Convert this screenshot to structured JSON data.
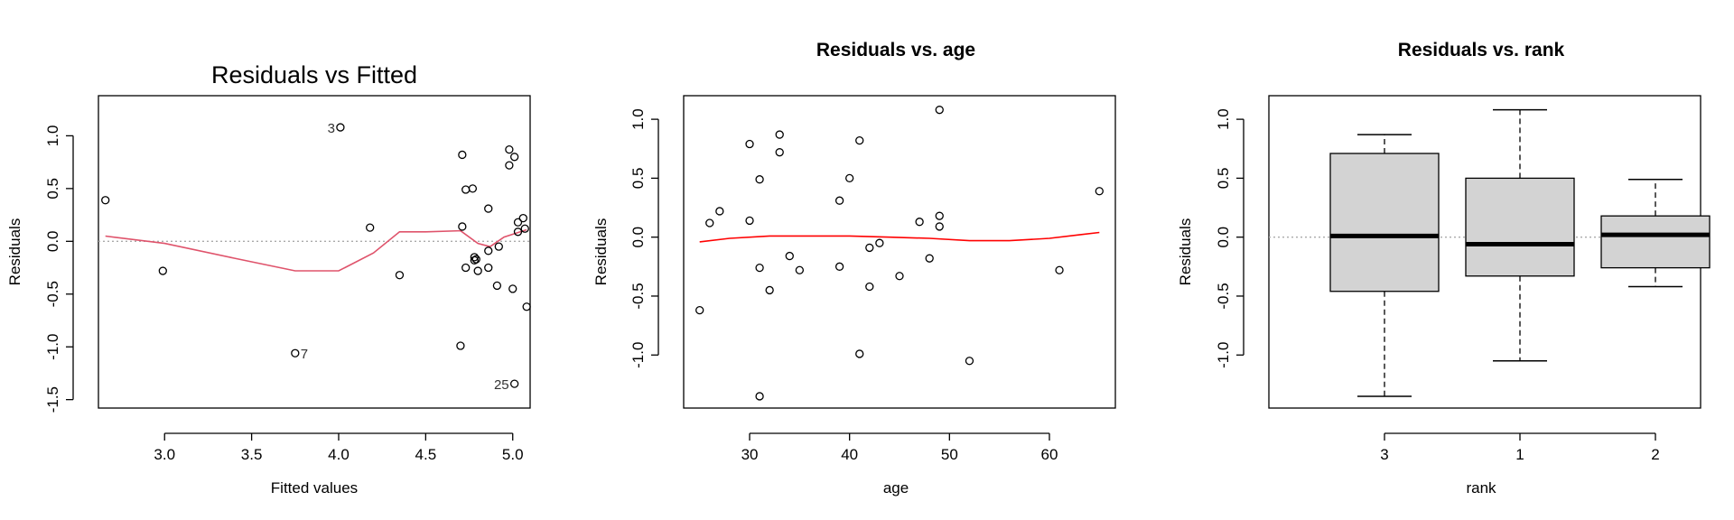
{
  "chart_data": [
    {
      "type": "scatter",
      "title": "Residuals vs Fitted",
      "xlabel": "Fitted values",
      "ylabel": "Residuals",
      "xlim": [
        2.62,
        5.1
      ],
      "ylim": [
        -1.58,
        1.38
      ],
      "xticks": [
        3.0,
        3.5,
        4.0,
        4.5,
        5.0
      ],
      "xtick_labels": [
        "3.0",
        "3.5",
        "4.0",
        "4.5",
        "5.0"
      ],
      "yticks": [
        -1.5,
        -1.0,
        -0.5,
        0.0,
        0.5,
        1.0
      ],
      "ytick_labels": [
        "-1.5",
        "-1.0",
        "-0.5",
        "0.0",
        "0.5",
        "1.0"
      ],
      "points": [
        {
          "x": 2.66,
          "y": 0.39
        },
        {
          "x": 2.99,
          "y": -0.28
        },
        {
          "x": 3.75,
          "y": -1.06
        },
        {
          "x": 4.01,
          "y": 1.08
        },
        {
          "x": 4.18,
          "y": 0.13
        },
        {
          "x": 4.35,
          "y": -0.32
        },
        {
          "x": 4.71,
          "y": 0.82
        },
        {
          "x": 4.71,
          "y": 0.14
        },
        {
          "x": 4.7,
          "y": -0.99
        },
        {
          "x": 4.73,
          "y": 0.49
        },
        {
          "x": 4.73,
          "y": -0.25
        },
        {
          "x": 4.77,
          "y": 0.5
        },
        {
          "x": 4.78,
          "y": -0.15
        },
        {
          "x": 4.78,
          "y": -0.18
        },
        {
          "x": 4.79,
          "y": -0.17
        },
        {
          "x": 4.8,
          "y": -0.28
        },
        {
          "x": 4.86,
          "y": 0.31
        },
        {
          "x": 4.86,
          "y": -0.09
        },
        {
          "x": 4.86,
          "y": -0.25
        },
        {
          "x": 4.91,
          "y": -0.42
        },
        {
          "x": 4.92,
          "y": -0.05
        },
        {
          "x": 4.98,
          "y": 0.87
        },
        {
          "x": 4.98,
          "y": 0.72
        },
        {
          "x": 5.0,
          "y": -0.45
        },
        {
          "x": 5.01,
          "y": 0.8
        },
        {
          "x": 5.01,
          "y": -1.35
        },
        {
          "x": 5.03,
          "y": 0.18
        },
        {
          "x": 5.03,
          "y": 0.09
        },
        {
          "x": 5.06,
          "y": 0.22
        },
        {
          "x": 5.07,
          "y": 0.12
        },
        {
          "x": 5.08,
          "y": -0.62
        }
      ],
      "point_labels": [
        {
          "text": "3",
          "x": 4.01,
          "y": 1.08,
          "side": "left"
        },
        {
          "text": "7",
          "x": 3.75,
          "y": -1.06,
          "side": "right"
        },
        {
          "text": "25",
          "x": 5.01,
          "y": -1.35,
          "side": "left"
        }
      ],
      "smooth": [
        {
          "x": 2.66,
          "y": 0.05
        },
        {
          "x": 3.0,
          "y": -0.02
        },
        {
          "x": 3.4,
          "y": -0.16
        },
        {
          "x": 3.75,
          "y": -0.28
        },
        {
          "x": 4.0,
          "y": -0.28
        },
        {
          "x": 4.2,
          "y": -0.11
        },
        {
          "x": 4.35,
          "y": 0.09
        },
        {
          "x": 4.5,
          "y": 0.09
        },
        {
          "x": 4.7,
          "y": 0.1
        },
        {
          "x": 4.8,
          "y": -0.02
        },
        {
          "x": 4.87,
          "y": -0.05
        },
        {
          "x": 4.95,
          "y": 0.04
        },
        {
          "x": 5.08,
          "y": 0.11
        }
      ],
      "smooth_color": "#DF536B",
      "refline_y": 0,
      "refline_color": "#AAAAAA",
      "point_color": "#000000"
    },
    {
      "type": "scatter",
      "title": "Residuals vs. age",
      "xlabel": "age",
      "ylabel": "Residuals",
      "xlim": [
        23.4,
        66.6
      ],
      "ylim": [
        -1.45,
        1.2
      ],
      "xticks": [
        30,
        40,
        50,
        60
      ],
      "xtick_labels": [
        "30",
        "40",
        "50",
        "60"
      ],
      "yticks": [
        -1.0,
        -0.5,
        0.0,
        0.5,
        1.0
      ],
      "ytick_labels": [
        "-1.0",
        "-0.5",
        "0.0",
        "0.5",
        "1.0"
      ],
      "points": [
        {
          "x": 25,
          "y": -0.62
        },
        {
          "x": 26,
          "y": 0.12
        },
        {
          "x": 27,
          "y": 0.22
        },
        {
          "x": 30,
          "y": 0.79
        },
        {
          "x": 30,
          "y": 0.14
        },
        {
          "x": 31,
          "y": 0.49
        },
        {
          "x": 31,
          "y": -0.26
        },
        {
          "x": 31,
          "y": -1.35
        },
        {
          "x": 32,
          "y": -0.45
        },
        {
          "x": 33,
          "y": 0.87
        },
        {
          "x": 33,
          "y": 0.72
        },
        {
          "x": 34,
          "y": -0.16
        },
        {
          "x": 35,
          "y": -0.28
        },
        {
          "x": 39,
          "y": 0.31
        },
        {
          "x": 39,
          "y": -0.25
        },
        {
          "x": 40,
          "y": 0.5
        },
        {
          "x": 41,
          "y": 0.82
        },
        {
          "x": 41,
          "y": -0.99
        },
        {
          "x": 42,
          "y": -0.09
        },
        {
          "x": 42,
          "y": -0.42
        },
        {
          "x": 43,
          "y": -0.05
        },
        {
          "x": 45,
          "y": -0.33
        },
        {
          "x": 47,
          "y": 0.13
        },
        {
          "x": 48,
          "y": -0.18
        },
        {
          "x": 49,
          "y": 1.08
        },
        {
          "x": 49,
          "y": 0.18
        },
        {
          "x": 49,
          "y": 0.09
        },
        {
          "x": 52,
          "y": -1.05
        },
        {
          "x": 61,
          "y": -0.28
        },
        {
          "x": 65,
          "y": 0.39
        }
      ],
      "smooth": [
        {
          "x": 25,
          "y": -0.04
        },
        {
          "x": 28,
          "y": -0.01
        },
        {
          "x": 32,
          "y": 0.01
        },
        {
          "x": 36,
          "y": 0.01
        },
        {
          "x": 40,
          "y": 0.01
        },
        {
          "x": 44,
          "y": 0.0
        },
        {
          "x": 48,
          "y": -0.01
        },
        {
          "x": 52,
          "y": -0.03
        },
        {
          "x": 56,
          "y": -0.03
        },
        {
          "x": 60,
          "y": -0.01
        },
        {
          "x": 63,
          "y": 0.02
        },
        {
          "x": 65,
          "y": 0.04
        }
      ],
      "smooth_color": "#FF0000",
      "point_color": "#000000"
    },
    {
      "type": "box",
      "title": "Residuals vs. rank",
      "xlabel": "rank",
      "ylabel": "Residuals",
      "ylim": [
        -1.45,
        1.2
      ],
      "categories": [
        "3",
        "1",
        "2"
      ],
      "yticks": [
        -1.0,
        -0.5,
        0.0,
        0.5,
        1.0
      ],
      "ytick_labels": [
        "-1.0",
        "-0.5",
        "0.0",
        "0.5",
        "1.0"
      ],
      "boxes": [
        {
          "label": "3",
          "min": -1.35,
          "q1": -0.46,
          "median": 0.01,
          "q3": 0.71,
          "max": 0.87
        },
        {
          "label": "1",
          "min": -1.05,
          "q1": -0.33,
          "median": -0.06,
          "q3": 0.5,
          "max": 1.08
        },
        {
          "label": "2",
          "min": -0.42,
          "q1": -0.26,
          "median": 0.02,
          "q3": 0.18,
          "max": 0.49
        }
      ],
      "refline_y": 0,
      "refline_color": "#AAAAAA",
      "box_fill": "#D3D3D3"
    }
  ]
}
